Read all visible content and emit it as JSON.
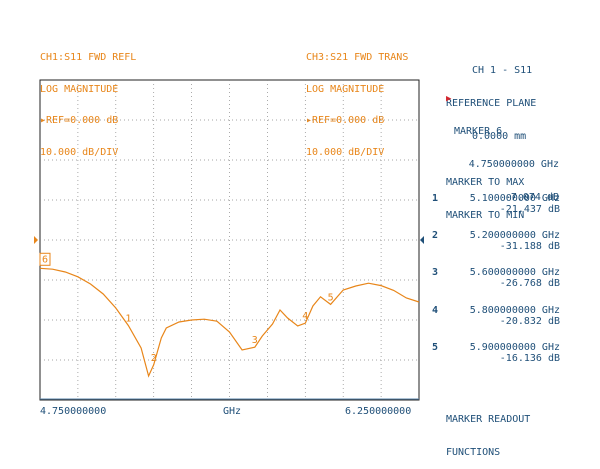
{
  "channel1": {
    "title": "CH1:S11 FWD REFL",
    "format": "LOG MAGNITUDE",
    "reference": "▸REF=0.000 dB",
    "scale": "10.000 dB/DIV"
  },
  "channel3": {
    "title": "CH3:S21 FWD TRANS",
    "format": "LOG MAGNITUDE",
    "reference": "▸REF=0.000 dB",
    "scale": "10.000 dB/DIV"
  },
  "side_panel": {
    "channel_label": "CH 1 - S11",
    "reference_plane_label": "REFERENCE PLANE",
    "reference_plane_value": "0.0000 mm",
    "active_marker": {
      "label": "MARKER 6",
      "frequency": "4.750000000 GHz",
      "value": "-7.074 dB"
    },
    "marker_to_max": "MARKER TO MAX",
    "marker_to_min": "MARKER TO MIN",
    "markers": [
      {
        "number": "1",
        "frequency": "5.100000000 GHz",
        "value": "-21.437 dB"
      },
      {
        "number": "2",
        "frequency": "5.200000000 GHz",
        "value": "-31.188 dB"
      },
      {
        "number": "3",
        "frequency": "5.600000000 GHz",
        "value": "-26.768 dB"
      },
      {
        "number": "4",
        "frequency": "5.800000000 GHz",
        "value": "-20.832 dB"
      },
      {
        "number": "5",
        "frequency": "5.900000000 GHz",
        "value": "-16.136 dB"
      }
    ],
    "readout_line1": "MARKER READOUT",
    "readout_line2": "FUNCTIONS"
  },
  "x_axis": {
    "start": "4.750000000",
    "unit": "GHz",
    "stop": "6.250000000"
  },
  "colors": {
    "trace": "#e8861a",
    "text_blue": "#1f4f78",
    "pointer_red": "#d3262e",
    "grid": "#888888"
  },
  "chart_data": {
    "type": "line",
    "x_range_ghz": [
      4.75,
      6.25
    ],
    "reference_db": 0,
    "scale_db_per_div": 10,
    "series": [
      {
        "x": [
          4.75,
          4.8,
          4.85,
          4.9,
          4.95,
          5.0,
          5.05,
          5.1,
          5.15,
          5.18,
          5.2,
          5.23,
          5.25,
          5.3,
          5.35,
          5.4,
          5.45,
          5.5,
          5.55,
          5.6,
          5.63,
          5.67,
          5.7,
          5.73,
          5.77,
          5.8,
          5.83,
          5.86,
          5.9,
          5.95,
          6.0,
          6.05,
          6.1,
          6.15,
          6.2,
          6.25
        ],
        "y": [
          -7.07,
          -7.3,
          -8.0,
          -9.2,
          -11.0,
          -13.5,
          -17.0,
          -21.4,
          -27.0,
          -34.0,
          -31.2,
          -24.5,
          -22.0,
          -20.5,
          -20.0,
          -19.8,
          -20.3,
          -23.0,
          -27.5,
          -26.8,
          -24.0,
          -21.0,
          -17.5,
          -19.5,
          -21.5,
          -20.8,
          -16.5,
          -14.2,
          -16.1,
          -12.5,
          -11.5,
          -10.8,
          -11.4,
          -12.6,
          -14.5,
          -15.5
        ]
      }
    ],
    "marker_labels": [
      "6",
      "1",
      "2",
      "3",
      "4",
      "5"
    ]
  }
}
